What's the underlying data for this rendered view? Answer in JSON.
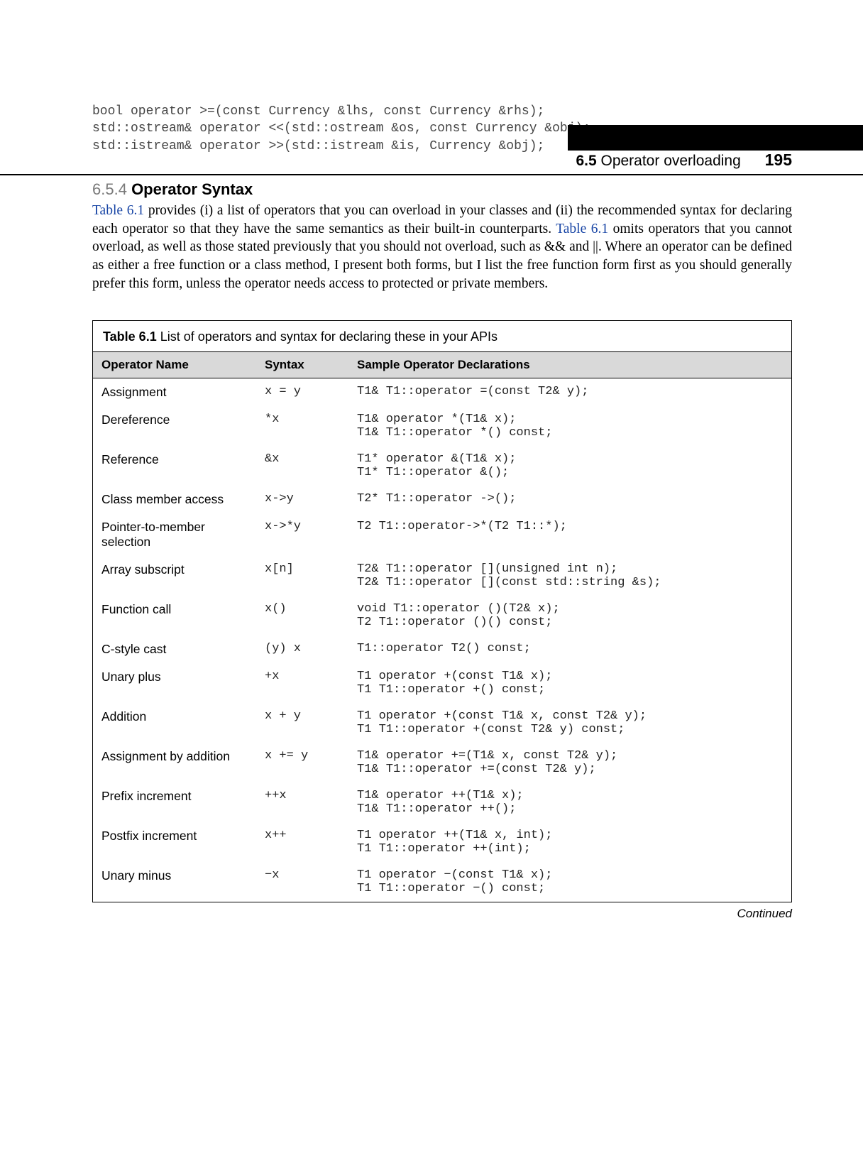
{
  "header": {
    "section_number": "6.5",
    "section_title": "Operator overloading",
    "page_number": "195"
  },
  "code_lines": [
    "bool operator >=(const Currency &lhs, const Currency &rhs);",
    "std::ostream& operator <<(std::ostream &os, const Currency &obj);",
    "std::istream& operator >>(std::istream &is, Currency &obj);"
  ],
  "section": {
    "number": "6.5.4",
    "title": "Operator Syntax"
  },
  "paragraph": {
    "link1": "Table 6.1",
    "part1": " provides (i) a list of operators that you can overload in your classes and (ii) the recommended syntax for declaring each operator so that they have the same semantics as their built-in counterparts. ",
    "link2": "Table 6.1",
    "part2": " omits operators that you cannot overload, as well as those stated previously that you should not overload, such as && and ||. Where an operator can be defined as either a free function or a class method, I present both forms, but I list the free function form first as you should generally prefer this form, unless the operator needs access to protected or private members."
  },
  "table": {
    "caption_label": "Table 6.1",
    "caption_text": "List of operators and syntax for declaring these in your APIs",
    "headers": {
      "name": "Operator Name",
      "syntax": "Syntax",
      "decl": "Sample Operator Declarations"
    },
    "rows": [
      {
        "name": "Assignment",
        "syntax": "x = y",
        "decl": "T1& T1::operator =(const T2& y);",
        "decl2": ""
      },
      {
        "name": "Dereference",
        "syntax": "*x",
        "decl": "T1& operator *(T1& x);",
        "decl2": "T1& T1::operator *() const;"
      },
      {
        "name": "Reference",
        "syntax": "&x",
        "decl": "T1* operator &(T1& x);",
        "decl2": "T1* T1::operator &();"
      },
      {
        "name": "Class member access",
        "syntax": "x->y",
        "decl": "T2* T1::operator ->();",
        "decl2": ""
      },
      {
        "name": "Pointer-to-member selection",
        "syntax": "x->*y",
        "decl": "T2 T1::operator->*(T2 T1::*);",
        "decl2": ""
      },
      {
        "name": "Array subscript",
        "syntax": "x[n]",
        "decl": "T2& T1::operator [](unsigned int n);",
        "decl2": "T2& T1::operator [](const std::string &s);"
      },
      {
        "name": "Function call",
        "syntax": "x()",
        "decl": "void T1::operator ()(T2& x);",
        "decl2": "T2 T1::operator ()() const;"
      },
      {
        "name": "C-style cast",
        "syntax": "(y) x",
        "decl": "T1::operator T2() const;",
        "decl2": ""
      },
      {
        "name": "Unary plus",
        "syntax": "+x",
        "decl": "T1 operator +(const T1& x);",
        "decl2": "T1 T1::operator +() const;"
      },
      {
        "name": "Addition",
        "syntax": "x + y",
        "decl": "T1 operator +(const T1& x, const T2& y);",
        "decl2": "T1 T1::operator +(const T2& y) const;"
      },
      {
        "name": "Assignment by addition",
        "syntax": "x += y",
        "decl": "T1& operator +=(T1& x, const T2& y);",
        "decl2": "T1& T1::operator +=(const T2& y);"
      },
      {
        "name": "Prefix increment",
        "syntax": "++x",
        "decl": "T1& operator ++(T1& x);",
        "decl2": "T1& T1::operator ++();"
      },
      {
        "name": "Postfix increment",
        "syntax": "x++",
        "decl": "T1 operator ++(T1& x, int);",
        "decl2": "T1 T1::operator ++(int);"
      },
      {
        "name": "Unary minus",
        "syntax": "−x",
        "decl": "T1 operator −(const T1& x);",
        "decl2": "T1 T1::operator −() const;"
      }
    ],
    "continued": "Continued"
  }
}
